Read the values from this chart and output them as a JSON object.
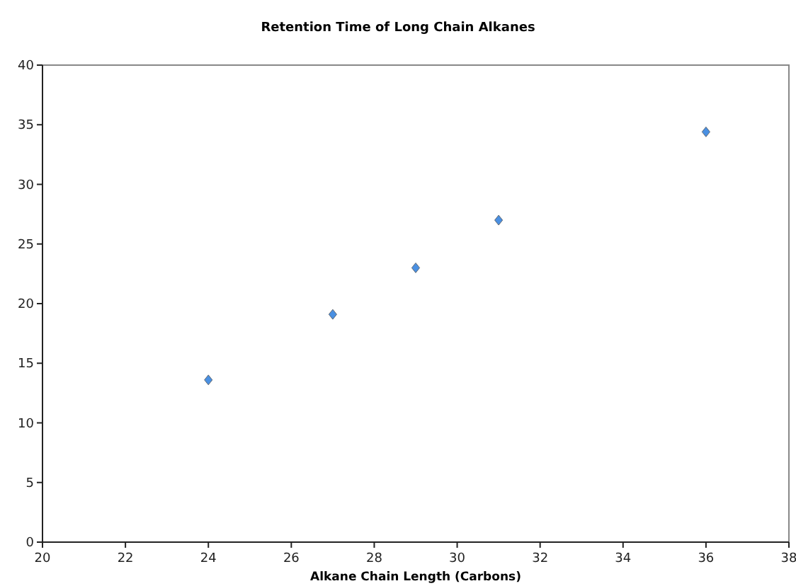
{
  "chart_data": {
    "type": "scatter",
    "title": "Retention Time of Long Chain Alkanes",
    "xlabel": "Alkane Chain Length (Carbons)",
    "x": [
      24,
      27,
      29,
      31,
      36
    ],
    "series": [
      {
        "color": "#4a90e2",
        "values": [
          13.6,
          19.1,
          23.0,
          27.0,
          34.4
        ]
      }
    ],
    "xlim": [
      20,
      38
    ],
    "xticks": [
      20,
      22,
      24,
      26,
      28,
      30,
      32,
      34,
      36,
      38
    ],
    "ylim": [
      0,
      40
    ],
    "yticks": [
      0,
      5,
      10,
      15,
      20,
      25,
      30,
      35,
      40
    ],
    "marker": "diamond"
  }
}
